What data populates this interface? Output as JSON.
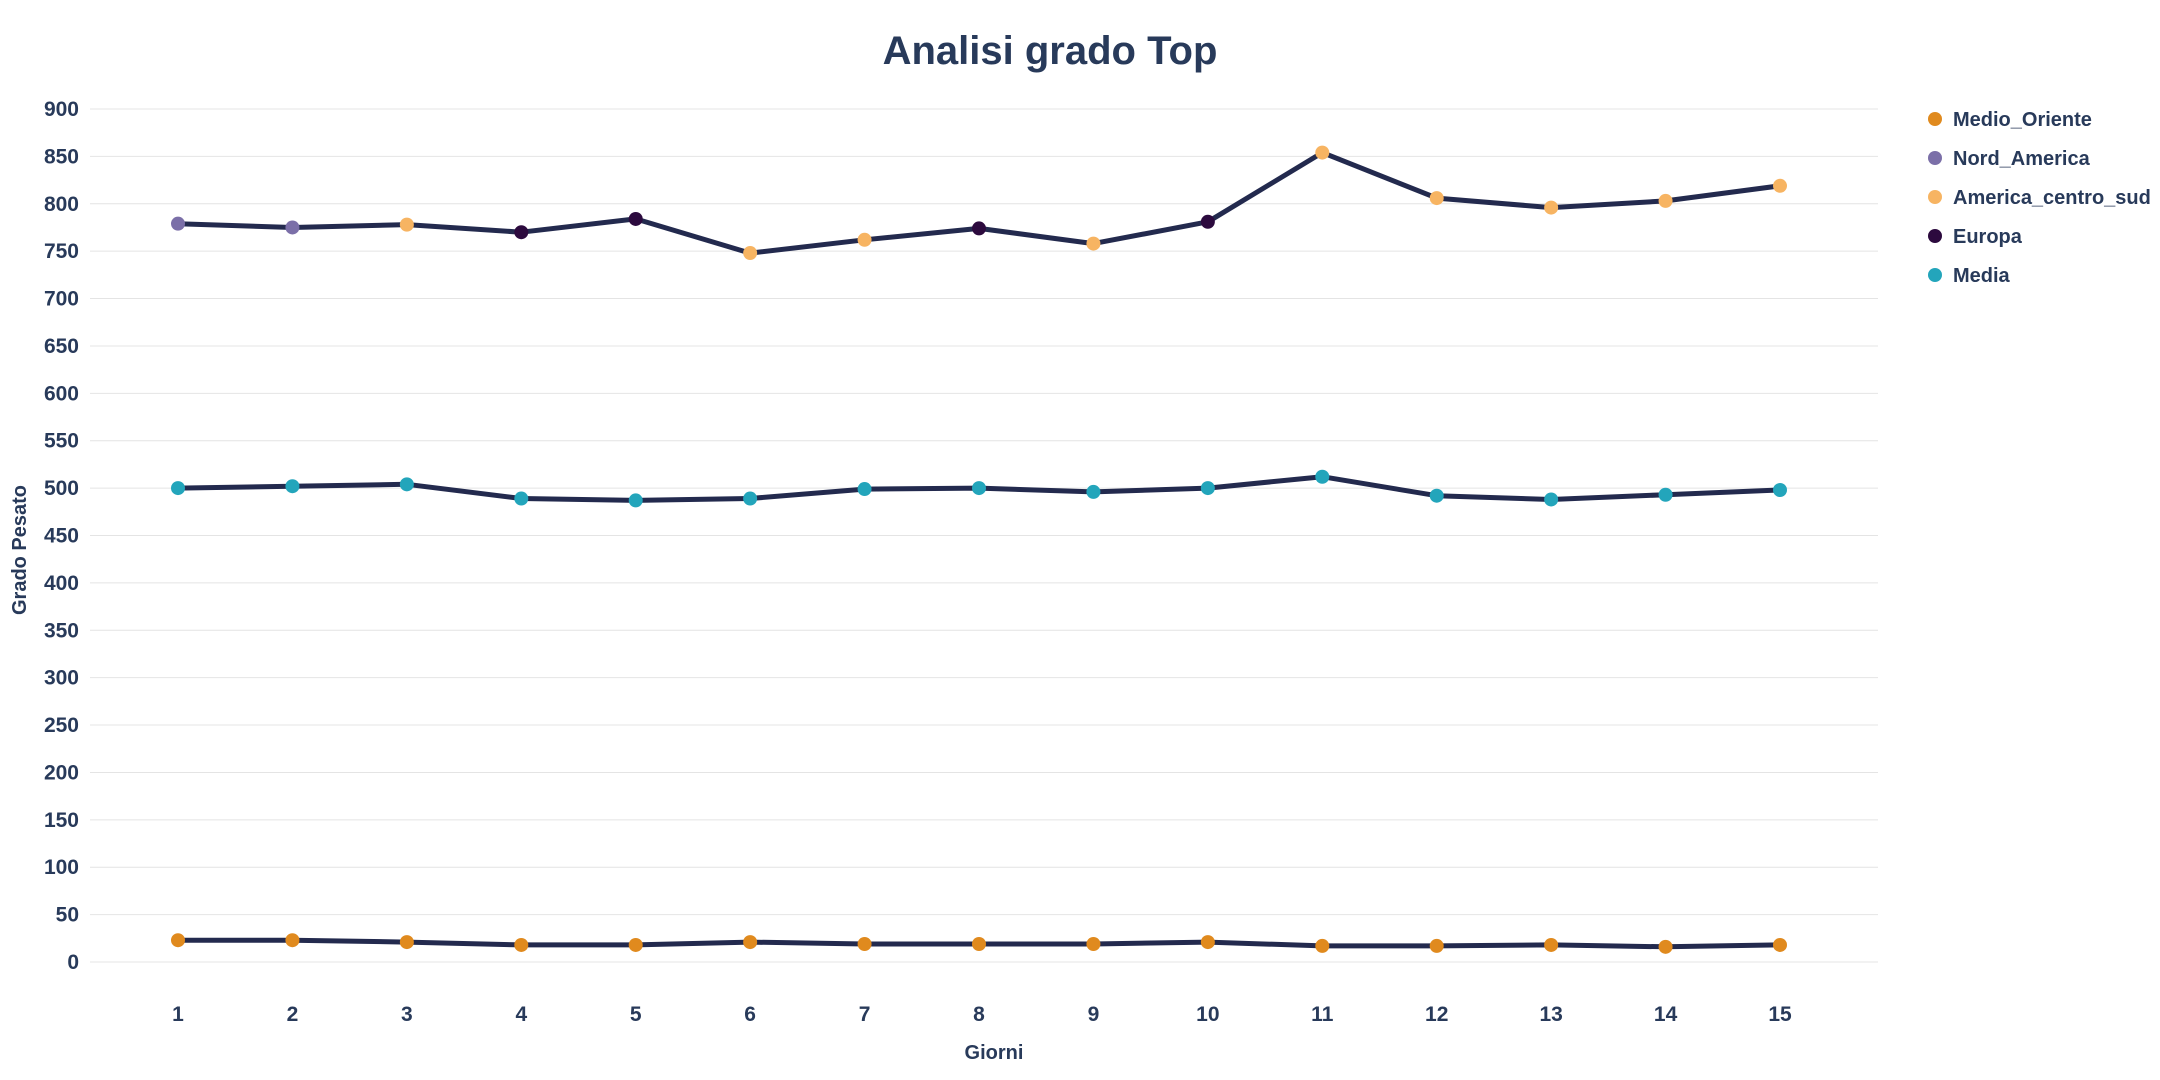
{
  "chart_data": {
    "type": "line",
    "title": "Analisi grado Top",
    "xlabel": "Giorni",
    "ylabel": "Grado Pesato",
    "x": [
      1,
      2,
      3,
      4,
      5,
      6,
      7,
      8,
      9,
      10,
      11,
      12,
      13,
      14,
      15
    ],
    "ylim": [
      0,
      900
    ],
    "yticks": [
      0,
      50,
      100,
      150,
      200,
      250,
      300,
      350,
      400,
      450,
      500,
      550,
      600,
      650,
      700,
      750,
      800,
      850,
      900
    ],
    "grid": true,
    "legend_position": "right",
    "legend": [
      {
        "name": "Medio_Oriente",
        "color": "#e08a1e"
      },
      {
        "name": "Nord_America",
        "color": "#7b6fa8"
      },
      {
        "name": "America_centro_sud",
        "color": "#f7b462"
      },
      {
        "name": "Europa",
        "color": "#2c0a3e"
      },
      {
        "name": "Media",
        "color": "#23a5bb"
      }
    ],
    "line_color": "#232a4e",
    "series": [
      {
        "values": [
          779,
          775,
          778,
          770,
          784,
          748,
          762,
          774,
          758,
          781,
          854,
          806,
          796,
          803,
          819
        ],
        "point_regions": [
          "Nord_America",
          "Nord_America",
          "America_centro_sud",
          "Europa",
          "Europa",
          "America_centro_sud",
          "America_centro_sud",
          "Europa",
          "America_centro_sud",
          "Europa",
          "America_centro_sud",
          "America_centro_sud",
          "America_centro_sud",
          "America_centro_sud",
          "America_centro_sud"
        ]
      },
      {
        "values": [
          500,
          502,
          504,
          489,
          487,
          489,
          499,
          500,
          496,
          500,
          512,
          492,
          488,
          493,
          498
        ],
        "point_regions": [
          "Media",
          "Media",
          "Media",
          "Media",
          "Media",
          "Media",
          "Media",
          "Media",
          "Media",
          "Media",
          "Media",
          "Media",
          "Media",
          "Media",
          "Media"
        ]
      },
      {
        "values": [
          23,
          23,
          21,
          18,
          18,
          21,
          19,
          19,
          19,
          21,
          17,
          17,
          18,
          16,
          18
        ],
        "point_regions": [
          "Medio_Oriente",
          "Medio_Oriente",
          "Medio_Oriente",
          "Medio_Oriente",
          "Medio_Oriente",
          "Medio_Oriente",
          "Medio_Oriente",
          "Medio_Oriente",
          "Medio_Oriente",
          "Medio_Oriente",
          "Medio_Oriente",
          "Medio_Oriente",
          "Medio_Oriente",
          "Medio_Oriente",
          "Medio_Oriente"
        ]
      }
    ]
  }
}
